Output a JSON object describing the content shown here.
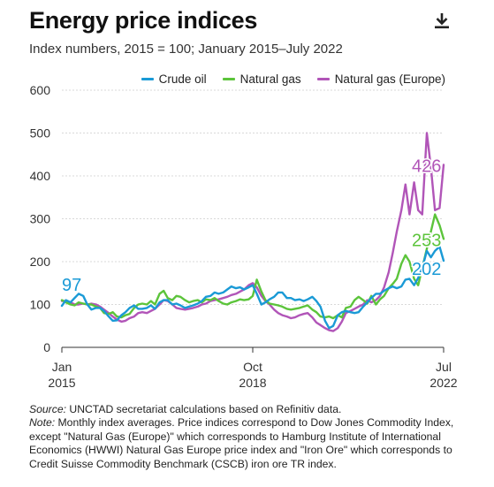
{
  "header": {
    "title": "Energy price indices",
    "subtitle": "Index numbers, 2015 = 100; January 2015–July 2022",
    "download_icon": "download-icon"
  },
  "notes": {
    "source_label": "Source:",
    "source_text": " UNCTAD secretariat calculations based on Refinitiv data.",
    "note_label": "Note:",
    "note_text": " Monthly index averages. Price indices correspond to Dow Jones Commodity Index, except \"Natural Gas (Europe)\" which corresponds to Hamburg Institute of International Economics (HWWI) Natural Gas Europe price index and \"Iron Ore\" which corresponds to Credit Suisse Commodity Benchmark (CSCB) iron ore TR index."
  },
  "chart_data": {
    "type": "line",
    "title": "Energy price indices",
    "ylim": [
      0,
      600
    ],
    "yticks": [
      0,
      100,
      200,
      300,
      400,
      500,
      600
    ],
    "x_range": [
      2015.0,
      2022.5
    ],
    "x_ticks": [
      {
        "value": 2015.0,
        "line1": "Jan",
        "line2": "2015"
      },
      {
        "value": 2018.75,
        "line1": "Oct",
        "line2": "2018"
      },
      {
        "value": 2022.5,
        "line1": "Jul",
        "line2": "2022"
      }
    ],
    "grid": true,
    "legend_position": "top-right",
    "series": [
      {
        "name": "Crude oil",
        "color": "#1a9ad6",
        "start_label": "97",
        "end_label": "202",
        "points": [
          [
            2015.0,
            97
          ],
          [
            2015.08,
            110
          ],
          [
            2015.17,
            105
          ],
          [
            2015.25,
            115
          ],
          [
            2015.33,
            125
          ],
          [
            2015.42,
            120
          ],
          [
            2015.5,
            100
          ],
          [
            2015.58,
            88
          ],
          [
            2015.67,
            92
          ],
          [
            2015.75,
            92
          ],
          [
            2015.83,
            85
          ],
          [
            2015.92,
            72
          ],
          [
            2016.0,
            62
          ],
          [
            2016.08,
            63
          ],
          [
            2016.17,
            75
          ],
          [
            2016.25,
            82
          ],
          [
            2016.33,
            92
          ],
          [
            2016.42,
            98
          ],
          [
            2016.5,
            90
          ],
          [
            2016.58,
            90
          ],
          [
            2016.67,
            92
          ],
          [
            2016.75,
            98
          ],
          [
            2016.83,
            90
          ],
          [
            2016.92,
            105
          ],
          [
            2017.0,
            110
          ],
          [
            2017.08,
            110
          ],
          [
            2017.17,
            100
          ],
          [
            2017.25,
            102
          ],
          [
            2017.33,
            98
          ],
          [
            2017.42,
            92
          ],
          [
            2017.5,
            95
          ],
          [
            2017.58,
            98
          ],
          [
            2017.67,
            102
          ],
          [
            2017.75,
            108
          ],
          [
            2017.83,
            118
          ],
          [
            2017.92,
            120
          ],
          [
            2018.0,
            128
          ],
          [
            2018.08,
            125
          ],
          [
            2018.17,
            128
          ],
          [
            2018.25,
            135
          ],
          [
            2018.33,
            142
          ],
          [
            2018.42,
            138
          ],
          [
            2018.5,
            140
          ],
          [
            2018.58,
            135
          ],
          [
            2018.67,
            140
          ],
          [
            2018.75,
            145
          ],
          [
            2018.83,
            125
          ],
          [
            2018.92,
            100
          ],
          [
            2019.0,
            105
          ],
          [
            2019.08,
            112
          ],
          [
            2019.17,
            118
          ],
          [
            2019.25,
            128
          ],
          [
            2019.33,
            128
          ],
          [
            2019.42,
            115
          ],
          [
            2019.5,
            115
          ],
          [
            2019.58,
            110
          ],
          [
            2019.67,
            112
          ],
          [
            2019.75,
            108
          ],
          [
            2019.83,
            112
          ],
          [
            2019.92,
            118
          ],
          [
            2020.0,
            108
          ],
          [
            2020.08,
            95
          ],
          [
            2020.17,
            62
          ],
          [
            2020.25,
            45
          ],
          [
            2020.33,
            50
          ],
          [
            2020.42,
            75
          ],
          [
            2020.5,
            82
          ],
          [
            2020.58,
            85
          ],
          [
            2020.67,
            82
          ],
          [
            2020.75,
            80
          ],
          [
            2020.83,
            82
          ],
          [
            2020.92,
            95
          ],
          [
            2021.0,
            105
          ],
          [
            2021.08,
            115
          ],
          [
            2021.17,
            125
          ],
          [
            2021.25,
            125
          ],
          [
            2021.33,
            132
          ],
          [
            2021.42,
            138
          ],
          [
            2021.5,
            142
          ],
          [
            2021.58,
            138
          ],
          [
            2021.67,
            142
          ],
          [
            2021.75,
            158
          ],
          [
            2021.83,
            160
          ],
          [
            2021.92,
            145
          ],
          [
            2022.0,
            162
          ],
          [
            2022.08,
            185
          ],
          [
            2022.17,
            225
          ],
          [
            2022.25,
            210
          ],
          [
            2022.33,
            225
          ],
          [
            2022.42,
            235
          ],
          [
            2022.5,
            202
          ]
        ]
      },
      {
        "name": "Natural gas",
        "color": "#5cc43b",
        "end_label": "253",
        "points": [
          [
            2015.0,
            110
          ],
          [
            2015.08,
            105
          ],
          [
            2015.17,
            100
          ],
          [
            2015.25,
            98
          ],
          [
            2015.33,
            105
          ],
          [
            2015.42,
            102
          ],
          [
            2015.5,
            100
          ],
          [
            2015.58,
            100
          ],
          [
            2015.67,
            95
          ],
          [
            2015.75,
            92
          ],
          [
            2015.83,
            80
          ],
          [
            2015.92,
            78
          ],
          [
            2016.0,
            82
          ],
          [
            2016.08,
            72
          ],
          [
            2016.17,
            70
          ],
          [
            2016.25,
            75
          ],
          [
            2016.33,
            78
          ],
          [
            2016.42,
            92
          ],
          [
            2016.5,
            100
          ],
          [
            2016.58,
            102
          ],
          [
            2016.67,
            100
          ],
          [
            2016.75,
            108
          ],
          [
            2016.83,
            100
          ],
          [
            2016.92,
            125
          ],
          [
            2017.0,
            132
          ],
          [
            2017.08,
            115
          ],
          [
            2017.17,
            110
          ],
          [
            2017.25,
            120
          ],
          [
            2017.33,
            118
          ],
          [
            2017.42,
            110
          ],
          [
            2017.5,
            105
          ],
          [
            2017.58,
            108
          ],
          [
            2017.67,
            110
          ],
          [
            2017.75,
            105
          ],
          [
            2017.83,
            112
          ],
          [
            2017.92,
            110
          ],
          [
            2018.0,
            115
          ],
          [
            2018.08,
            108
          ],
          [
            2018.17,
            102
          ],
          [
            2018.25,
            100
          ],
          [
            2018.33,
            105
          ],
          [
            2018.42,
            108
          ],
          [
            2018.5,
            112
          ],
          [
            2018.58,
            110
          ],
          [
            2018.67,
            112
          ],
          [
            2018.75,
            120
          ],
          [
            2018.83,
            158
          ],
          [
            2018.92,
            130
          ],
          [
            2019.0,
            110
          ],
          [
            2019.08,
            102
          ],
          [
            2019.17,
            100
          ],
          [
            2019.25,
            98
          ],
          [
            2019.33,
            95
          ],
          [
            2019.42,
            90
          ],
          [
            2019.5,
            88
          ],
          [
            2019.58,
            90
          ],
          [
            2019.67,
            92
          ],
          [
            2019.75,
            95
          ],
          [
            2019.83,
            98
          ],
          [
            2019.92,
            88
          ],
          [
            2020.0,
            82
          ],
          [
            2020.08,
            72
          ],
          [
            2020.17,
            70
          ],
          [
            2020.25,
            72
          ],
          [
            2020.33,
            68
          ],
          [
            2020.42,
            75
          ],
          [
            2020.5,
            70
          ],
          [
            2020.58,
            92
          ],
          [
            2020.67,
            95
          ],
          [
            2020.75,
            110
          ],
          [
            2020.83,
            118
          ],
          [
            2020.92,
            110
          ],
          [
            2021.0,
            102
          ],
          [
            2021.08,
            120
          ],
          [
            2021.17,
            100
          ],
          [
            2021.25,
            112
          ],
          [
            2021.33,
            120
          ],
          [
            2021.42,
            138
          ],
          [
            2021.5,
            148
          ],
          [
            2021.58,
            160
          ],
          [
            2021.67,
            195
          ],
          [
            2021.75,
            215
          ],
          [
            2021.83,
            200
          ],
          [
            2021.92,
            160
          ],
          [
            2022.0,
            145
          ],
          [
            2022.08,
            185
          ],
          [
            2022.17,
            230
          ],
          [
            2022.25,
            270
          ],
          [
            2022.33,
            310
          ],
          [
            2022.42,
            285
          ],
          [
            2022.5,
            253
          ]
        ]
      },
      {
        "name": "Natural gas (Europe)",
        "color": "#b155b8",
        "end_label": "426",
        "points": [
          [
            2015.0,
            108
          ],
          [
            2015.08,
            108
          ],
          [
            2015.17,
            105
          ],
          [
            2015.25,
            100
          ],
          [
            2015.33,
            100
          ],
          [
            2015.42,
            102
          ],
          [
            2015.5,
            100
          ],
          [
            2015.58,
            102
          ],
          [
            2015.67,
            100
          ],
          [
            2015.75,
            95
          ],
          [
            2015.83,
            88
          ],
          [
            2015.92,
            80
          ],
          [
            2016.0,
            72
          ],
          [
            2016.08,
            65
          ],
          [
            2016.17,
            60
          ],
          [
            2016.25,
            62
          ],
          [
            2016.33,
            68
          ],
          [
            2016.42,
            72
          ],
          [
            2016.5,
            80
          ],
          [
            2016.58,
            82
          ],
          [
            2016.67,
            80
          ],
          [
            2016.75,
            85
          ],
          [
            2016.83,
            90
          ],
          [
            2016.92,
            100
          ],
          [
            2017.0,
            110
          ],
          [
            2017.08,
            108
          ],
          [
            2017.17,
            100
          ],
          [
            2017.25,
            92
          ],
          [
            2017.33,
            90
          ],
          [
            2017.42,
            88
          ],
          [
            2017.5,
            90
          ],
          [
            2017.58,
            92
          ],
          [
            2017.67,
            95
          ],
          [
            2017.75,
            100
          ],
          [
            2017.83,
            102
          ],
          [
            2017.92,
            108
          ],
          [
            2018.0,
            110
          ],
          [
            2018.08,
            112
          ],
          [
            2018.17,
            115
          ],
          [
            2018.25,
            118
          ],
          [
            2018.33,
            122
          ],
          [
            2018.42,
            125
          ],
          [
            2018.5,
            130
          ],
          [
            2018.58,
            135
          ],
          [
            2018.67,
            145
          ],
          [
            2018.75,
            150
          ],
          [
            2018.83,
            140
          ],
          [
            2018.92,
            120
          ],
          [
            2019.0,
            108
          ],
          [
            2019.08,
            100
          ],
          [
            2019.17,
            88
          ],
          [
            2019.25,
            80
          ],
          [
            2019.33,
            75
          ],
          [
            2019.42,
            72
          ],
          [
            2019.5,
            68
          ],
          [
            2019.58,
            70
          ],
          [
            2019.67,
            75
          ],
          [
            2019.75,
            78
          ],
          [
            2019.83,
            80
          ],
          [
            2019.92,
            70
          ],
          [
            2020.0,
            58
          ],
          [
            2020.08,
            52
          ],
          [
            2020.17,
            45
          ],
          [
            2020.25,
            40
          ],
          [
            2020.33,
            38
          ],
          [
            2020.42,
            45
          ],
          [
            2020.5,
            60
          ],
          [
            2020.58,
            80
          ],
          [
            2020.67,
            85
          ],
          [
            2020.75,
            90
          ],
          [
            2020.83,
            95
          ],
          [
            2020.92,
            100
          ],
          [
            2021.0,
            110
          ],
          [
            2021.08,
            105
          ],
          [
            2021.17,
            110
          ],
          [
            2021.25,
            120
          ],
          [
            2021.33,
            140
          ],
          [
            2021.42,
            175
          ],
          [
            2021.5,
            220
          ],
          [
            2021.58,
            270
          ],
          [
            2021.67,
            320
          ],
          [
            2021.75,
            380
          ],
          [
            2021.83,
            310
          ],
          [
            2021.92,
            385
          ],
          [
            2022.0,
            320
          ],
          [
            2022.08,
            310
          ],
          [
            2022.17,
            500
          ],
          [
            2022.25,
            420
          ],
          [
            2022.33,
            320
          ],
          [
            2022.42,
            325
          ],
          [
            2022.5,
            426
          ]
        ]
      }
    ]
  }
}
